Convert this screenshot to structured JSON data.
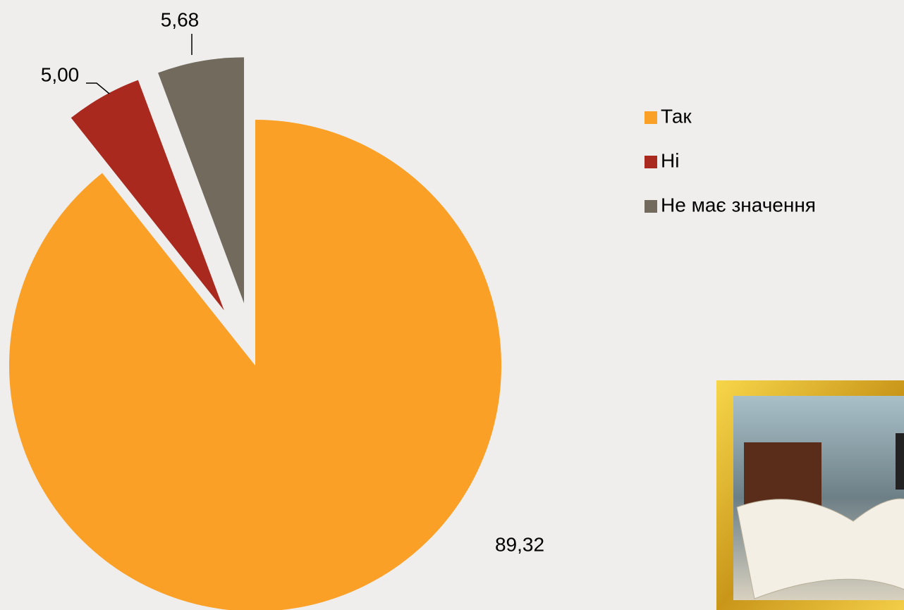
{
  "chart_data": {
    "type": "pie",
    "categories": [
      "Так",
      "Ні",
      "Не має значення"
    ],
    "values": [
      89.32,
      5.0,
      5.68
    ],
    "value_labels": [
      "89,32",
      "5,00",
      "5,68"
    ],
    "colors": [
      "#fba026",
      "#a9291f",
      "#716a5d"
    ]
  }
}
